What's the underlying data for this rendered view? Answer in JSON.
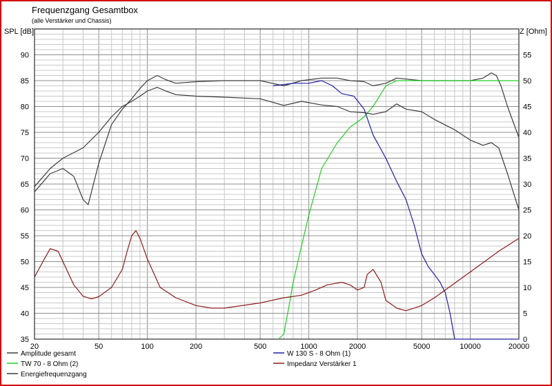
{
  "title": "Frequenzgang Gesamtbox",
  "subtitle": "(alle Verstärker und Chassis)",
  "chart_data": {
    "type": "line",
    "x_scale": "log",
    "xlim": [
      20,
      20000
    ],
    "x_ticks": [
      20,
      50,
      100,
      200,
      500,
      1000,
      2000,
      5000,
      10000,
      20000
    ],
    "x_tick_labels": [
      "20",
      "50",
      "100",
      "200",
      "500",
      "1000",
      "2000",
      "5000",
      "10000",
      "20000"
    ],
    "ylabel_left": "SPL [dB]",
    "ylim_left": [
      35,
      95
    ],
    "y_ticks_left": [
      35,
      40,
      45,
      50,
      55,
      60,
      65,
      70,
      75,
      80,
      85,
      90
    ],
    "ylabel_right": "Z [Ohm]",
    "ylim_right": [
      0,
      60
    ],
    "y_ticks_right": [
      0,
      5,
      10,
      15,
      20,
      25,
      30,
      35,
      40,
      45,
      50,
      55
    ],
    "grid": true,
    "legend_position": "bottom",
    "series": [
      {
        "name": "Amplitude gesamt",
        "color": "#3a3a3a",
        "axis": "left",
        "points": [
          [
            20,
            63.5
          ],
          [
            25,
            67
          ],
          [
            30,
            68
          ],
          [
            35,
            66.5
          ],
          [
            40,
            62
          ],
          [
            43,
            61
          ],
          [
            50,
            69
          ],
          [
            60,
            76.5
          ],
          [
            70,
            79.5
          ],
          [
            80,
            81.5
          ],
          [
            90,
            83.5
          ],
          [
            100,
            85
          ],
          [
            115,
            86
          ],
          [
            130,
            85.2
          ],
          [
            150,
            84.5
          ],
          [
            200,
            84.8
          ],
          [
            300,
            85
          ],
          [
            500,
            85
          ],
          [
            700,
            84
          ],
          [
            900,
            85
          ],
          [
            1200,
            85.5
          ],
          [
            1500,
            85.5
          ],
          [
            1800,
            85
          ],
          [
            2200,
            84.8
          ],
          [
            2500,
            84
          ],
          [
            3000,
            84.5
          ],
          [
            3500,
            85.5
          ],
          [
            5000,
            85
          ],
          [
            7000,
            85
          ],
          [
            10000,
            85
          ],
          [
            12000,
            85.5
          ],
          [
            13500,
            86.5
          ],
          [
            14500,
            86
          ],
          [
            15500,
            84
          ],
          [
            17000,
            80
          ],
          [
            20000,
            74
          ]
        ]
      },
      {
        "name": "TW 70 - 8 Ohm (2)",
        "color": "#22cc22",
        "axis": "left",
        "points": [
          [
            650,
            35
          ],
          [
            700,
            36
          ],
          [
            750,
            41
          ],
          [
            800,
            46
          ],
          [
            900,
            53
          ],
          [
            1000,
            59
          ],
          [
            1200,
            68
          ],
          [
            1500,
            73
          ],
          [
            1800,
            76
          ],
          [
            2000,
            77
          ],
          [
            2200,
            78
          ],
          [
            2500,
            80
          ],
          [
            3000,
            84
          ],
          [
            3500,
            85
          ],
          [
            5000,
            85
          ],
          [
            7000,
            85
          ],
          [
            10000,
            85
          ],
          [
            20000,
            85
          ]
        ]
      },
      {
        "name": "Energiefrequenzgang",
        "color": "#3a3a3a",
        "axis": "left",
        "points": [
          [
            20,
            64.5
          ],
          [
            25,
            68
          ],
          [
            30,
            70
          ],
          [
            40,
            72
          ],
          [
            50,
            75
          ],
          [
            60,
            78
          ],
          [
            70,
            80
          ],
          [
            80,
            81
          ],
          [
            90,
            82
          ],
          [
            100,
            83
          ],
          [
            115,
            83.7
          ],
          [
            130,
            83
          ],
          [
            150,
            82.3
          ],
          [
            200,
            82
          ],
          [
            300,
            81.8
          ],
          [
            500,
            81.5
          ],
          [
            700,
            80.2
          ],
          [
            900,
            81
          ],
          [
            1200,
            80.3
          ],
          [
            1500,
            80
          ],
          [
            1800,
            79
          ],
          [
            2200,
            78.8
          ],
          [
            2500,
            78.5
          ],
          [
            3000,
            79
          ],
          [
            3500,
            80.5
          ],
          [
            4000,
            79.5
          ],
          [
            5000,
            79
          ],
          [
            6000,
            77.5
          ],
          [
            8000,
            75.5
          ],
          [
            10000,
            73.5
          ],
          [
            12000,
            72.5
          ],
          [
            13500,
            73
          ],
          [
            15000,
            72
          ],
          [
            17000,
            67
          ],
          [
            20000,
            60
          ]
        ]
      },
      {
        "name": "W 130 S - 8 Ohm (1)",
        "color": "#1c1ca8",
        "axis": "left",
        "points": [
          [
            600,
            84
          ],
          [
            800,
            84.5
          ],
          [
            1000,
            84.5
          ],
          [
            1200,
            85
          ],
          [
            1400,
            84
          ],
          [
            1600,
            82.5
          ],
          [
            1900,
            82
          ],
          [
            2200,
            79.5
          ],
          [
            2500,
            74.5
          ],
          [
            3000,
            70
          ],
          [
            3500,
            65.5
          ],
          [
            4000,
            62
          ],
          [
            4500,
            57
          ],
          [
            5000,
            51.5
          ],
          [
            5500,
            49
          ],
          [
            6000,
            47.5
          ],
          [
            6500,
            46
          ],
          [
            7000,
            44
          ],
          [
            7500,
            40
          ],
          [
            8000,
            35
          ],
          [
            10000,
            35
          ],
          [
            20000,
            35
          ]
        ]
      },
      {
        "name": "Impedanz Verstärker 1",
        "color": "#8b1a1a",
        "axis": "right",
        "points": [
          [
            20,
            12
          ],
          [
            23,
            15.5
          ],
          [
            25,
            17.5
          ],
          [
            28,
            17
          ],
          [
            30,
            15
          ],
          [
            35,
            10.5
          ],
          [
            40,
            8.3
          ],
          [
            45,
            7.8
          ],
          [
            50,
            8.2
          ],
          [
            60,
            10
          ],
          [
            70,
            13.5
          ],
          [
            75,
            17
          ],
          [
            80,
            20
          ],
          [
            85,
            21
          ],
          [
            90,
            19.5
          ],
          [
            100,
            15.5
          ],
          [
            120,
            10
          ],
          [
            150,
            8
          ],
          [
            200,
            6.5
          ],
          [
            250,
            6
          ],
          [
            300,
            6
          ],
          [
            500,
            7
          ],
          [
            700,
            8
          ],
          [
            900,
            8.5
          ],
          [
            1100,
            9.5
          ],
          [
            1300,
            10.5
          ],
          [
            1600,
            11
          ],
          [
            1800,
            10.5
          ],
          [
            2000,
            9.5
          ],
          [
            2200,
            10
          ],
          [
            2300,
            12.5
          ],
          [
            2500,
            13.5
          ],
          [
            2800,
            11
          ],
          [
            3000,
            7.5
          ],
          [
            3500,
            6
          ],
          [
            4000,
            5.5
          ],
          [
            5000,
            6.5
          ],
          [
            6000,
            8
          ],
          [
            7000,
            9.5
          ],
          [
            10000,
            13
          ],
          [
            15000,
            17
          ],
          [
            20000,
            19.5
          ]
        ]
      }
    ]
  }
}
